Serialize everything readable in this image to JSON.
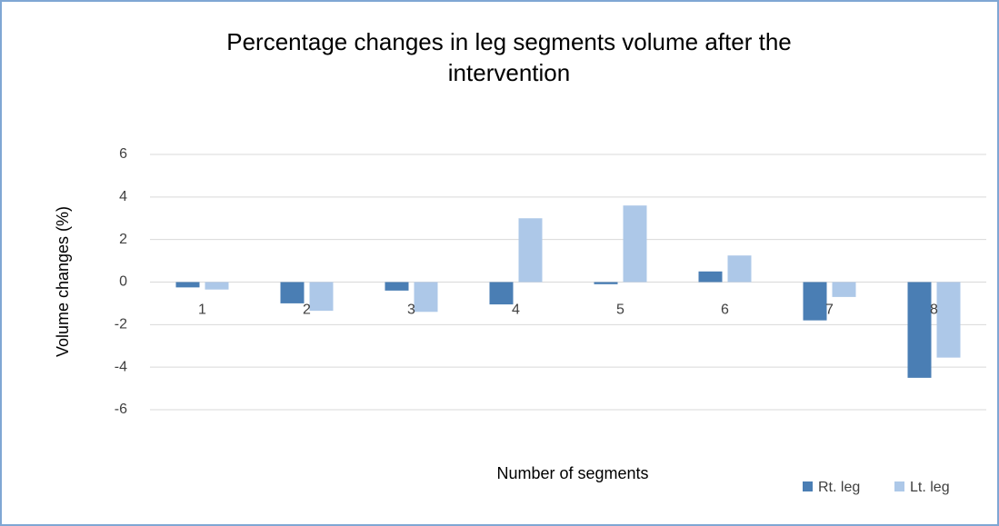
{
  "chart_data": {
    "type": "bar",
    "title": "Percentage changes in leg segments volume after the intervention",
    "xlabel": "Number of segments",
    "ylabel": "Volume changes (%)",
    "categories": [
      "1",
      "2",
      "3",
      "4",
      "5",
      "6",
      "7",
      "8"
    ],
    "series": [
      {
        "name": "Rt. leg",
        "color": "#4a7eb4",
        "values": [
          -0.25,
          -1.0,
          -0.4,
          -1.05,
          -0.1,
          0.5,
          -1.8,
          -4.5
        ]
      },
      {
        "name": "Lt. leg",
        "color": "#adc8e8",
        "values": [
          -0.35,
          -1.35,
          -1.4,
          3.0,
          3.6,
          1.25,
          -0.7,
          -3.55
        ]
      }
    ],
    "ylim": [
      -6,
      6
    ],
    "yticks": [
      -6,
      -4,
      -2,
      0,
      2,
      4,
      6
    ],
    "grid": true,
    "legend": "bottom-right"
  }
}
